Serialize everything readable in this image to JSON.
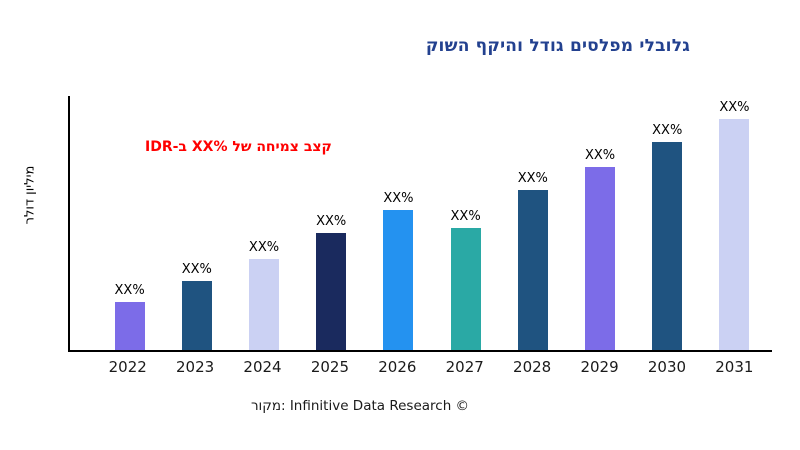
{
  "title": {
    "text": "גלובלי מפלסים גודל והיקף השוק",
    "color": "#23418F"
  },
  "annotation": {
    "text": "קצב צמיחה של %XX ב-IDR",
    "color": "#FF0000"
  },
  "y_axis": {
    "label": "מיליון דולר"
  },
  "caption": {
    "text": "מקור: Infinitive Data Research ©"
  },
  "chart_data": {
    "type": "bar",
    "title": "גלובלי מפלסים גודל והיקף השוק",
    "categories": [
      "2022",
      "2023",
      "2024",
      "2025",
      "2026",
      "2027",
      "2028",
      "2029",
      "2030",
      "2031"
    ],
    "values": [
      19,
      27,
      36,
      46,
      55,
      48,
      63,
      72,
      82,
      91
    ],
    "values_note": "Bar heights estimated as percent of y-axis range; numeric data labels are placeholder text XX%",
    "bar_labels": [
      "XX%",
      "XX%",
      "XX%",
      "XX%",
      "XX%",
      "XX%",
      "XX%",
      "XX%",
      "XX%",
      "XX%"
    ],
    "bar_colors": [
      "#7C6CE8",
      "#1F5380",
      "#CBD1F3",
      "#1A2A5E",
      "#2492F0",
      "#2AA9A5",
      "#1F5380",
      "#7C6CE8",
      "#1F5380",
      "#CBD1F3"
    ],
    "xlabel": "",
    "ylabel": "מיליון דולר",
    "ylim": [
      0,
      100
    ],
    "grid": false,
    "legend": false,
    "annotation": "קצב צמיחה של XX% ב-IDR",
    "source": "מקור: Infinitive Data Research ©"
  }
}
